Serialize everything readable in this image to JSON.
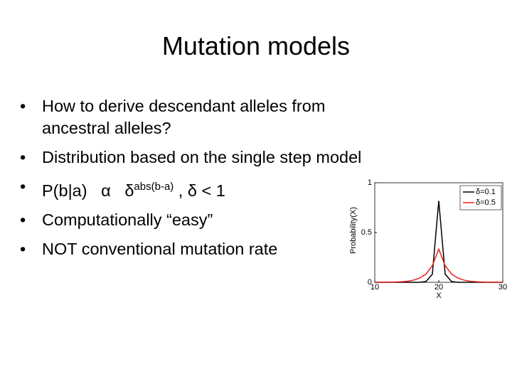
{
  "slide": {
    "title": "Mutation models",
    "bullets": [
      "How to derive descendant alleles from ancestral alleles?",
      "Distribution based on the single step model",
      {
        "text": "P(b|a)   α   δ",
        "sup": "abs(b-a)",
        "tail": " , δ < 1"
      },
      "Computationally “easy”",
      "NOT conventional mutation rate"
    ]
  },
  "chart_data": {
    "type": "line",
    "xlabel": "X",
    "ylabel": "Probability(X)",
    "x": [
      10,
      11,
      12,
      13,
      14,
      15,
      16,
      17,
      18,
      19,
      20,
      21,
      22,
      23,
      24,
      25,
      26,
      27,
      28,
      29,
      30
    ],
    "series": [
      {
        "name": "δ=0.1",
        "color": "#000000",
        "values": [
          0,
          0,
          0,
          0,
          0,
          0,
          0,
          0,
          0.008,
          0.082,
          0.818,
          0.082,
          0.008,
          0,
          0,
          0,
          0,
          0,
          0,
          0,
          0
        ]
      },
      {
        "name": "δ=0.5",
        "color": "#e8201c",
        "values": [
          0.0003,
          0.0007,
          0.001,
          0.003,
          0.005,
          0.01,
          0.021,
          0.042,
          0.083,
          0.167,
          0.333,
          0.167,
          0.083,
          0.042,
          0.021,
          0.01,
          0.005,
          0.003,
          0.001,
          0.0007,
          0.0003
        ]
      }
    ],
    "xlim": [
      10,
      30
    ],
    "xticks": [
      10,
      20,
      30
    ],
    "ylim": [
      0,
      1
    ],
    "yticks": [
      0,
      0.5,
      1
    ],
    "legend": "upper right"
  }
}
